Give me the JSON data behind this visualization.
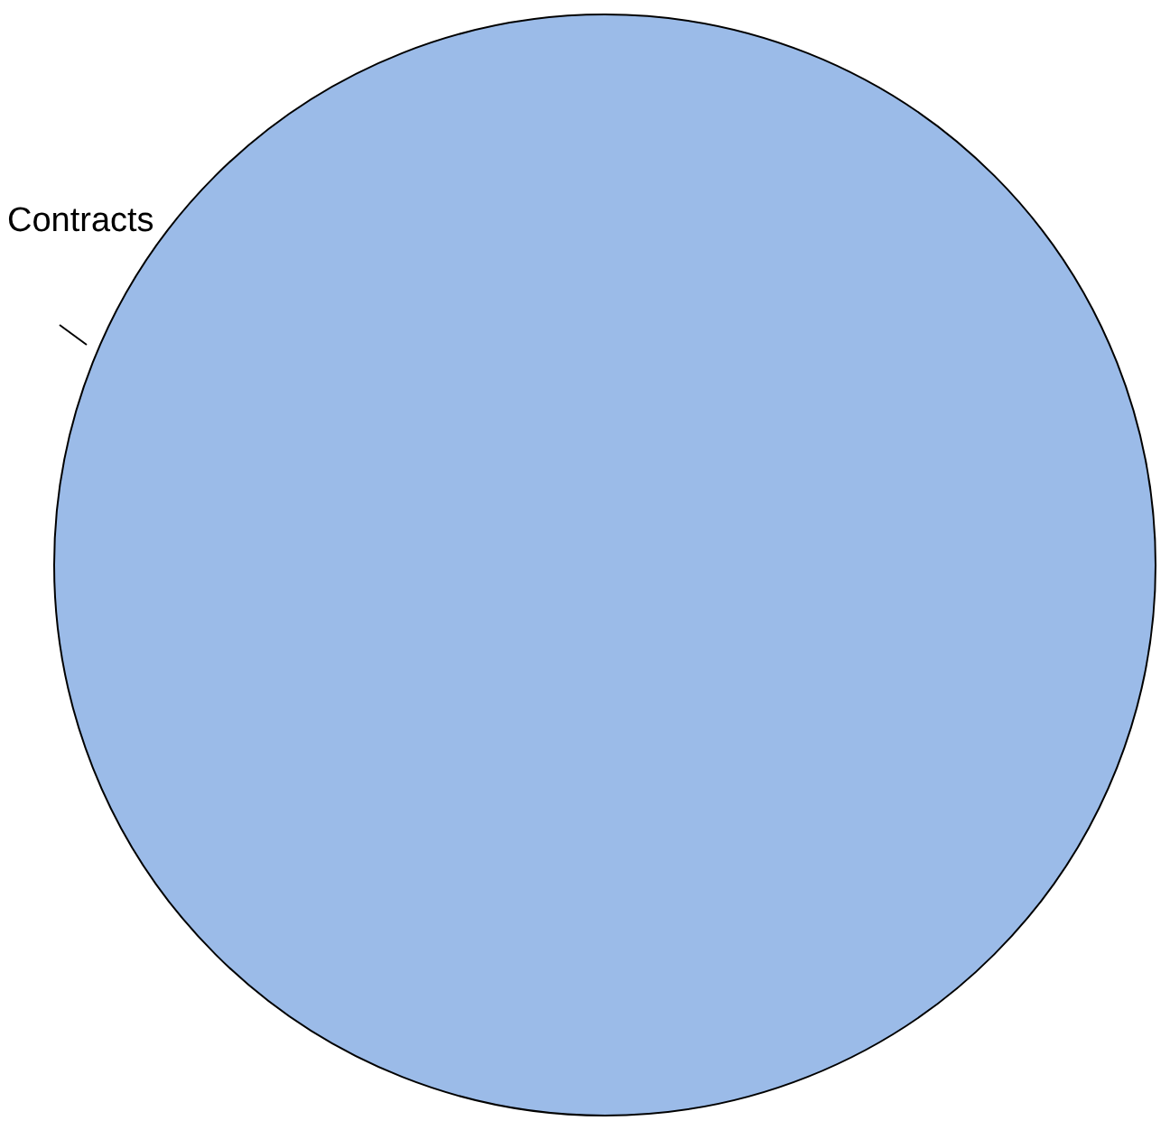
{
  "chart_data": {
    "type": "pie",
    "categories": [
      "Contracts"
    ],
    "values": [
      100
    ],
    "colors": [
      "#9bbbe8"
    ],
    "legend": false
  }
}
